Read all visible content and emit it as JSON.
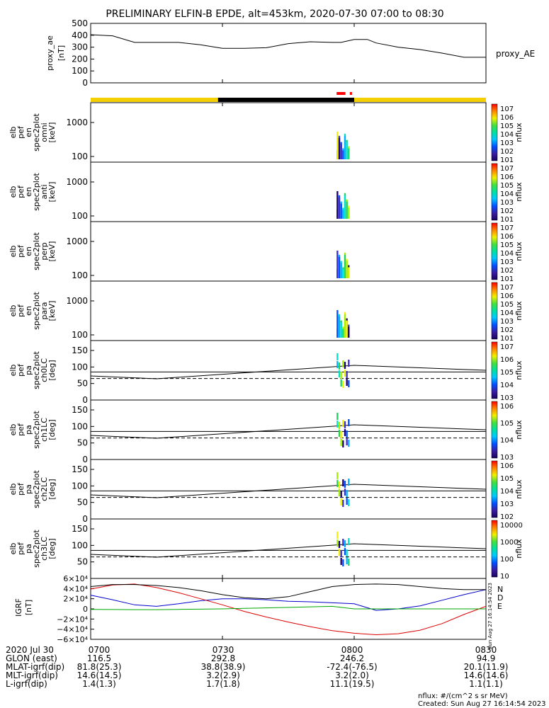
{
  "title": "PRELIMINARY ELFIN-B EPDE, alt=453km, 2020-07-30 07:00 to 08:30",
  "colors": {
    "axis": "#000000",
    "ae_line": "#000000",
    "orbit_day": "#f5d000",
    "orbit_night": "#000000",
    "orbit_marker": "#ff0000",
    "igrf_N": "#0000cc",
    "igrf_D": "#dd0000",
    "igrf_E": "#00aa00",
    "igrf_total": "#000000"
  },
  "chart_data": [
    {
      "type": "line",
      "name": "proxy_ae",
      "ylabel": "proxy_ae [nT]",
      "legend": "proxy_AE",
      "yticks": [
        "500",
        "400",
        "300",
        "200",
        "100",
        "0"
      ],
      "ylim": [
        0,
        500
      ],
      "xlim": [
        "07:00",
        "08:30"
      ],
      "x": [
        "07:00",
        "07:05",
        "07:10",
        "07:15",
        "07:20",
        "07:25",
        "07:30",
        "07:35",
        "07:40",
        "07:45",
        "07:50",
        "07:55",
        "07:57",
        "08:00",
        "08:03",
        "08:05",
        "08:10",
        "08:15",
        "08:20",
        "08:25",
        "08:30"
      ],
      "values": [
        405,
        395,
        340,
        340,
        340,
        320,
        290,
        290,
        295,
        330,
        345,
        340,
        340,
        365,
        365,
        335,
        300,
        280,
        250,
        215,
        215
      ]
    },
    {
      "type": "bar",
      "name": "orbit_bar",
      "segments": [
        {
          "from": "07:00",
          "to": "07:29",
          "kind": "day"
        },
        {
          "from": "07:29",
          "to": "08:00",
          "kind": "night"
        },
        {
          "from": "08:00",
          "to": "08:30",
          "kind": "day"
        }
      ],
      "markers": [
        {
          "from": "07:56",
          "to": "07:58",
          "kind": "marker"
        },
        {
          "from": "07:59",
          "to": "07:59.5",
          "kind": "marker"
        }
      ]
    },
    {
      "type": "heatmap",
      "panels": [
        {
          "name": "omni",
          "ylabel": [
            "elb",
            "pef",
            "en",
            "spec2plot",
            "omni",
            "[keV]"
          ],
          "yticks": [
            "1000",
            "100"
          ],
          "zlabel": "nflux",
          "ztick_labels": [
            "10^7",
            "10^6",
            "10^5",
            "10^4",
            "10^3",
            "10^2",
            "10^1"
          ]
        },
        {
          "name": "anti",
          "ylabel": [
            "elb",
            "pef",
            "en",
            "spec2plot",
            "anti",
            "[keV]"
          ],
          "yticks": [
            "1000",
            "100"
          ],
          "zlabel": "nflux",
          "ztick_labels": [
            "10^7",
            "10^6",
            "10^5",
            "10^4",
            "10^3",
            "10^2",
            "10^1"
          ]
        },
        {
          "name": "perp",
          "ylabel": [
            "elb",
            "pef",
            "en",
            "spec2plot",
            "perp",
            "[keV]"
          ],
          "yticks": [
            "1000",
            "100"
          ],
          "zlabel": "nflux",
          "ztick_labels": [
            "10^7",
            "10^6",
            "10^5",
            "10^4",
            "10^3",
            "10^2",
            "10^1"
          ]
        },
        {
          "name": "para",
          "ylabel": [
            "elb",
            "pef",
            "en",
            "spec2plot",
            "para",
            "[keV]"
          ],
          "yticks": [
            "1000",
            "100"
          ],
          "zlabel": "nflux",
          "ztick_labels": [
            "10^7",
            "10^6",
            "10^5",
            "10^4",
            "10^3",
            "10^2",
            "10^1"
          ]
        },
        {
          "name": "ch0LC",
          "ylabel": [
            "elb",
            "pef",
            "pa",
            "spec2plot",
            "ch0LC",
            "[deg]"
          ],
          "yticks": [
            "150",
            "100",
            "50",
            "0"
          ],
          "zlabel": "nflux",
          "ztick_labels": [
            "10^7",
            "10^6",
            "10^5",
            "10^4",
            "10^3"
          ]
        },
        {
          "name": "ch1LC",
          "ylabel": [
            "elb",
            "pef",
            "pa",
            "spec2plot",
            "ch1LC",
            "[deg]"
          ],
          "yticks": [
            "150",
            "100",
            "50",
            "0"
          ],
          "zlabel": "nflux",
          "ztick_labels": [
            "10^6",
            "10^5",
            "10^4",
            "10^3"
          ]
        },
        {
          "name": "ch2LC",
          "ylabel": [
            "elb",
            "pef",
            "pa",
            "spec2plot",
            "ch2LC",
            "[deg]"
          ],
          "yticks": [
            "150",
            "100",
            "50",
            "0"
          ],
          "zlabel": "nflux",
          "ztick_labels": [
            "10^6",
            "10^5",
            "10^4",
            "10^3",
            "10^2"
          ]
        },
        {
          "name": "ch3LC",
          "ylabel": [
            "elb",
            "pef",
            "pa",
            "spec2plot",
            "ch3LC",
            "[deg]"
          ],
          "yticks": [
            "150",
            "100",
            "50"
          ],
          "zlabel": "nflux",
          "ztick_labels": [
            "10000",
            "1000",
            "100",
            "10"
          ]
        }
      ]
    },
    {
      "type": "line",
      "name": "IGRF",
      "ylabel": "IGRF [nT]",
      "yticks": [
        "6×10⁴",
        "4×10⁴",
        "2×10⁴",
        "0",
        "−2×10⁴",
        "−4×10⁴",
        "−6×10⁴"
      ],
      "ylim": [
        -60000,
        60000
      ],
      "legend": [
        "N",
        "D",
        "E"
      ],
      "x": [
        "07:00",
        "07:05",
        "07:10",
        "07:15",
        "07:20",
        "07:25",
        "07:30",
        "07:35",
        "07:40",
        "07:45",
        "07:50",
        "07:55",
        "08:00",
        "08:05",
        "08:10",
        "08:15",
        "08:20",
        "08:25",
        "08:30"
      ],
      "series": [
        {
          "name": "N",
          "values": [
            27000,
            18000,
            8000,
            5000,
            10000,
            16000,
            20000,
            20000,
            18000,
            15000,
            14000,
            12000,
            10000,
            -3000,
            0,
            6000,
            17000,
            28000,
            38000
          ]
        },
        {
          "name": "D",
          "values": [
            39000,
            47000,
            49000,
            42000,
            32000,
            20000,
            8000,
            -5000,
            -16000,
            -26000,
            -35000,
            -43000,
            -48000,
            -51000,
            -49000,
            -42000,
            -29000,
            -11000,
            5000
          ]
        },
        {
          "name": "E",
          "values": [
            -1000,
            -1200,
            -1500,
            -1500,
            -1000,
            -500,
            0,
            1000,
            2000,
            3000,
            4000,
            5000,
            0,
            0,
            0,
            0,
            0,
            0,
            0
          ]
        },
        {
          "values": [
            44000,
            48000,
            48000,
            46000,
            42000,
            36000,
            28000,
            22000,
            20000,
            24000,
            34000,
            44000,
            48000,
            49000,
            48000,
            44000,
            40000,
            38000,
            38000
          ]
        }
      ]
    }
  ],
  "xtick_labels": [
    "0700",
    "0730",
    "0800",
    "0830"
  ],
  "footer_rows": [
    {
      "label": "2020 Jul 30",
      "values": [
        "0700",
        "0730",
        "0800",
        "0830"
      ]
    },
    {
      "label": "GLON (east)",
      "values": [
        "116.5",
        "292.8",
        "246.2",
        "94.9"
      ]
    },
    {
      "label": "MLAT-igrf(dip)",
      "values": [
        "81.8(25.3)",
        "38.8(38.9)",
        "-72.4(-76.5)",
        "20.1(11.9)"
      ]
    },
    {
      "label": "MLT-igrf(dip)",
      "values": [
        "14.6(14.5)",
        "3.2(2.9)",
        "3.2(2.0)",
        "14.6(14.6)"
      ]
    },
    {
      "label": "L-igrf(dip)",
      "values": [
        "1.4(1.3)",
        "1.7(1.8)",
        "11.1(19.5)",
        "1.1(1.1)"
      ]
    }
  ],
  "footnote_units": "nflux: #/(cm^2 s sr MeV)",
  "footnote_created": "Created: Sun Aug 27 16:14:54 2023",
  "side_stamp": "Sun Aug 27 16:14:54 2023"
}
